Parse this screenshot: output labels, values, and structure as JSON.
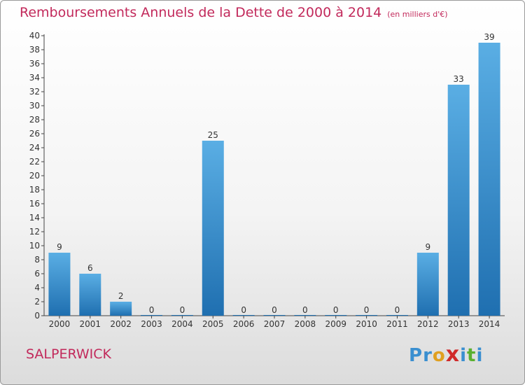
{
  "chart_data": {
    "type": "bar",
    "title": "Remboursements Annuels de la Dette de 2000 à 2014",
    "unit_note": "(en milliers d'€)",
    "categories": [
      "2000",
      "2001",
      "2002",
      "2003",
      "2004",
      "2005",
      "2006",
      "2007",
      "2008",
      "2009",
      "2010",
      "2011",
      "2012",
      "2013",
      "2014"
    ],
    "values": [
      9,
      6,
      2,
      0,
      0,
      25,
      0,
      0,
      0,
      0,
      0,
      0,
      9,
      33,
      39
    ],
    "ylim": [
      0,
      40
    ],
    "yticks": [
      0,
      2,
      4,
      6,
      8,
      10,
      12,
      14,
      16,
      18,
      20,
      22,
      24,
      26,
      28,
      30,
      32,
      34,
      36,
      38,
      40
    ],
    "grid": false,
    "bar_color_top": "#5aaee4",
    "bar_color_bottom": "#1f6fb0",
    "title_color": "#c2295b"
  },
  "footer": {
    "commune": "SALPERWICK"
  },
  "brand": {
    "letters": [
      {
        "char": "P",
        "color": "#3a8fd0"
      },
      {
        "char": "r",
        "color": "#3a8fd0"
      },
      {
        "char": "o",
        "color": "#e0a020"
      },
      {
        "char": "x",
        "color": "#d02a2a"
      },
      {
        "char": "i",
        "color": "#3a8fd0"
      },
      {
        "char": "t",
        "color": "#5ab030"
      },
      {
        "char": "i",
        "color": "#3a8fd0"
      }
    ]
  }
}
